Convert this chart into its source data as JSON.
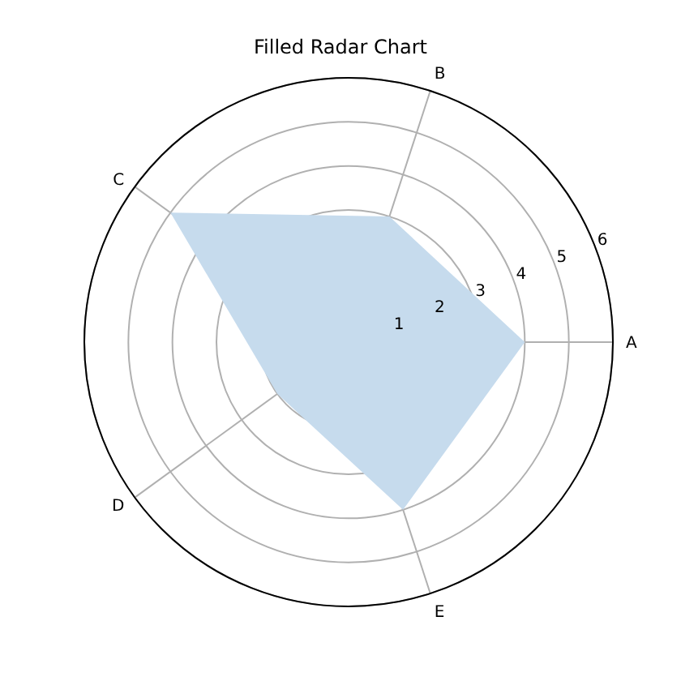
{
  "chart_data": {
    "type": "radar",
    "title": "Filled Radar Chart",
    "categories": [
      "B",
      "A",
      "E",
      "D",
      "C"
    ],
    "series": [
      {
        "color": "#c6dbed",
        "values": [
          3,
          4,
          4,
          2,
          5
        ]
      }
    ],
    "ylim": [
      0,
      6
    ],
    "yticks": [
      1,
      2,
      3,
      4,
      5,
      6
    ],
    "grid": true
  }
}
